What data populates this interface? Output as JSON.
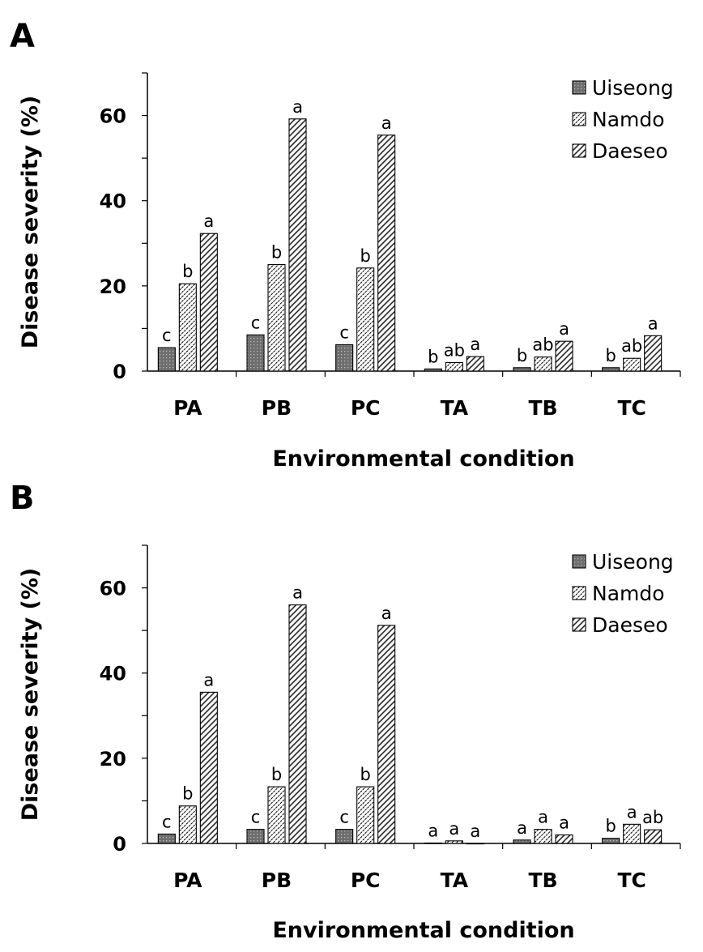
{
  "chart_data": [
    {
      "type": "bar",
      "panel_label": "A",
      "title": "",
      "xlabel": "Environmental condition",
      "ylabel": "Disease severity (%)",
      "ylim": [
        0,
        70
      ],
      "yticks": [
        0,
        20,
        40,
        60
      ],
      "grid": false,
      "legend_position": "top-right",
      "categories": [
        "PA",
        "PB",
        "PC",
        "TA",
        "TB",
        "TC"
      ],
      "series": [
        {
          "name": "Uiseong",
          "values": [
            5.5,
            8.5,
            6.2,
            0.5,
            0.8,
            0.8
          ],
          "labels": [
            "c",
            "c",
            "c",
            "b",
            "b",
            "b"
          ]
        },
        {
          "name": "Namdo",
          "values": [
            20.5,
            25.0,
            24.2,
            2.0,
            3.3,
            3.0
          ],
          "labels": [
            "b",
            "b",
            "b",
            "ab",
            "ab",
            "ab"
          ]
        },
        {
          "name": "Daeseo",
          "values": [
            32.3,
            59.2,
            55.4,
            3.4,
            7.0,
            8.3
          ],
          "labels": [
            "a",
            "a",
            "a",
            "a",
            "a",
            "a"
          ]
        }
      ]
    },
    {
      "type": "bar",
      "panel_label": "B",
      "title": "",
      "xlabel": "Environmental condition",
      "ylabel": "Disease severity (%)",
      "ylim": [
        0,
        70
      ],
      "yticks": [
        0,
        20,
        40,
        60
      ],
      "grid": false,
      "legend_position": "top-right",
      "categories": [
        "PA",
        "PB",
        "PC",
        "TA",
        "TB",
        "TC"
      ],
      "series": [
        {
          "name": "Uiseong",
          "values": [
            2.2,
            3.3,
            3.3,
            0.1,
            0.8,
            1.2
          ],
          "labels": [
            "c",
            "c",
            "c",
            "a",
            "a",
            "b"
          ]
        },
        {
          "name": "Namdo",
          "values": [
            8.8,
            13.3,
            13.3,
            0.6,
            3.3,
            4.5
          ],
          "labels": [
            "b",
            "b",
            "b",
            "a",
            "a",
            "a"
          ]
        },
        {
          "name": "Daeseo",
          "values": [
            35.5,
            56.0,
            51.2,
            0.0,
            2.0,
            3.2
          ],
          "labels": [
            "a",
            "a",
            "a",
            "a",
            "a",
            "ab"
          ]
        }
      ]
    }
  ],
  "colors": {
    "uiseong_fill": "#6e6e6e",
    "uiseong_dot": "#b8b8b8",
    "namdo_fill": "#ffffff",
    "daeseo_fill": "#ffffff",
    "stroke": "#000000"
  }
}
